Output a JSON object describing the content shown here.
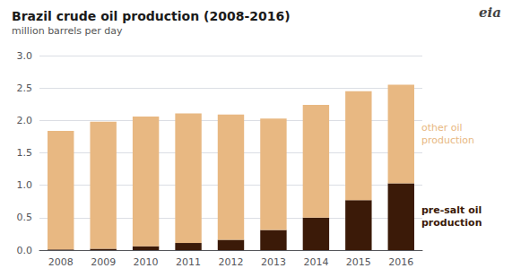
{
  "chart_data": {
    "type": "bar",
    "stacked": true,
    "title": "Brazil crude oil production (2008-2016)",
    "subtitle": "million barrels per day",
    "categories": [
      "2008",
      "2009",
      "2010",
      "2011",
      "2012",
      "2013",
      "2014",
      "2015",
      "2016"
    ],
    "series": [
      {
        "name": "pre-salt oil\nproduction",
        "color": "#3b1a08",
        "values": [
          0.01,
          0.02,
          0.06,
          0.11,
          0.16,
          0.31,
          0.5,
          0.77,
          1.03
        ]
      },
      {
        "name": "other oil\nproduction",
        "color": "#e8b882",
        "values": [
          1.83,
          1.96,
          2.0,
          2.0,
          1.93,
          1.72,
          1.74,
          1.68,
          1.52
        ]
      }
    ],
    "ylim": [
      0,
      3.0
    ],
    "yticks": [
      {
        "value": 0,
        "label": "0.0"
      },
      0.5,
      {
        "value": 1,
        "label": "1.0"
      },
      1.5,
      {
        "value": 2,
        "label": "2.0"
      },
      2.5,
      {
        "value": 3,
        "label": "3.0"
      }
    ],
    "grid": true,
    "annotations": [
      "eia"
    ]
  }
}
